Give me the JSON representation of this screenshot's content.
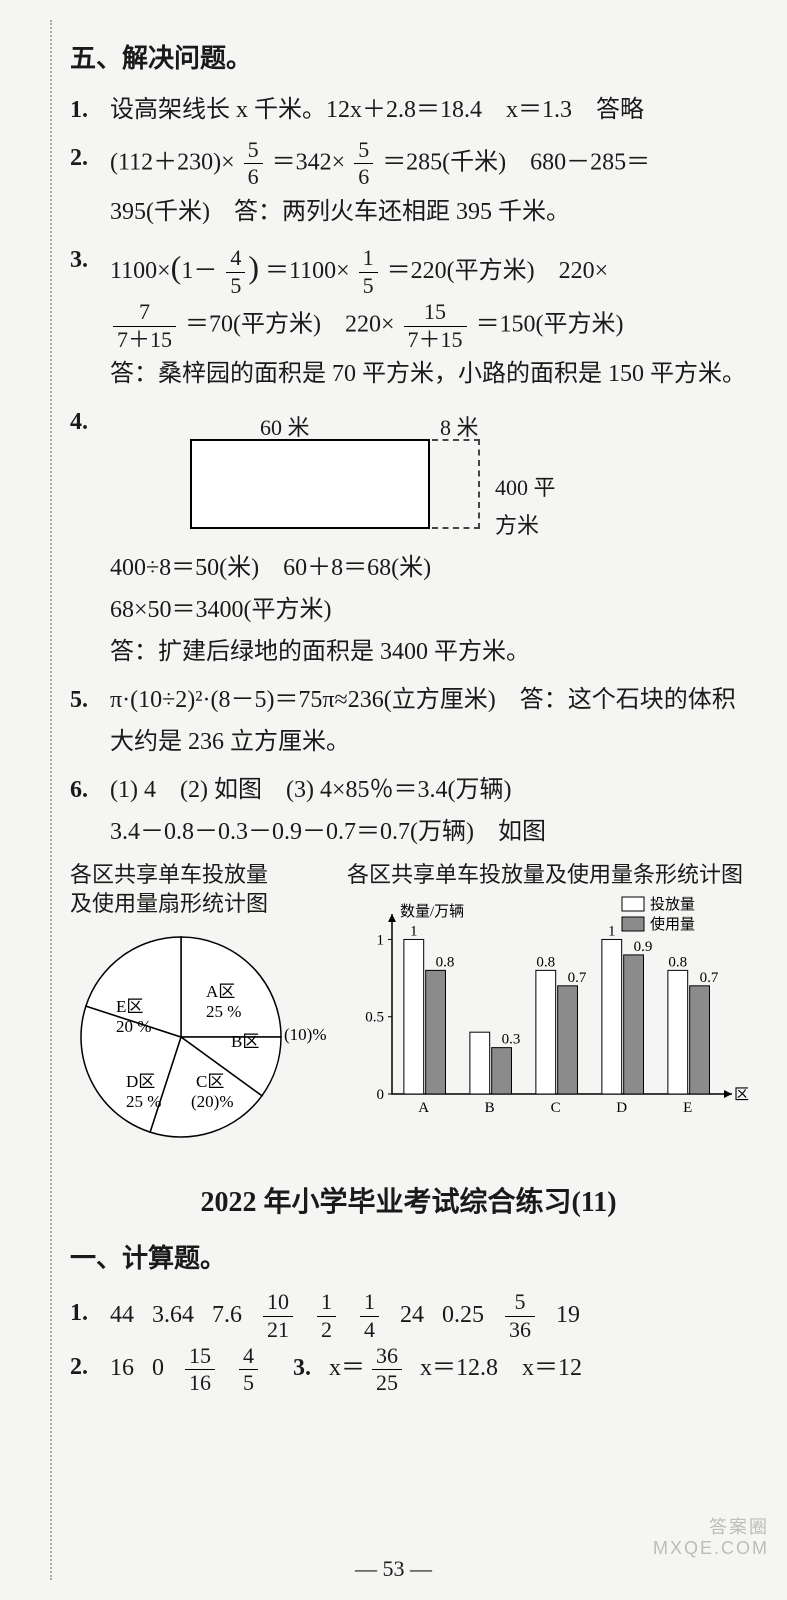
{
  "section5": {
    "title": "五、解决问题。",
    "q1": {
      "num": "1.",
      "text": "设高架线长 x 千米。12x＋2.8＝18.4　x＝1.3　答略"
    },
    "q2": {
      "num": "2.",
      "part_a": "(112＋230)×",
      "frac1_n": "5",
      "frac1_d": "6",
      "part_b": "＝342×",
      "frac2_n": "5",
      "frac2_d": "6",
      "part_c": "＝285(千米)　680－285＝",
      "line2": "395(千米)　答：两列火车还相距 395 千米。"
    },
    "q3": {
      "num": "3.",
      "a1": "1100×",
      "lp": "(",
      "one": "1－",
      "f1_n": "4",
      "f1_d": "5",
      "rp": ")",
      "a2": "＝1100×",
      "f2_n": "1",
      "f2_d": "5",
      "a3": "＝220(平方米)　220×",
      "l2a": "",
      "f3_n": "7",
      "f3_d": "7＋15",
      "l2b": "＝70(平方米)　220×",
      "f4_n": "15",
      "f4_d": "7＋15",
      "l2c": "＝150(平方米)",
      "ans": "答：桑梓园的面积是 70 平方米，小路的面积是 150 平方米。"
    },
    "q4": {
      "num": "4.",
      "lbl60": "60 米",
      "lbl8": "8 米",
      "lbl400": "400 平方米",
      "line1": "400÷8＝50(米)　60＋8＝68(米)",
      "line2": "68×50＝3400(平方米)",
      "ans": "答：扩建后绿地的面积是 3400 平方米。"
    },
    "q5": {
      "num": "5.",
      "text": "π·(10÷2)²·(8－5)＝75π≈236(立方厘米)　答：这个石块的体积大约是 236 立方厘米。"
    },
    "q6": {
      "num": "6.",
      "line1": "(1) 4　(2) 如图　(3) 4×85％＝3.4(万辆)",
      "line2": "3.4－0.8－0.3－0.9－0.7＝0.7(万辆)　如图"
    }
  },
  "pie": {
    "title1": "各区共享单车投放量",
    "title2": "及使用量扇形统计图",
    "slices": [
      {
        "label": "A区",
        "sub": "25 %",
        "pct": 25
      },
      {
        "label": "B区",
        "sub": "",
        "pct": 10
      },
      {
        "label": "C区",
        "sub": "(20)%",
        "pct": 20
      },
      {
        "label": "D区",
        "sub": "25 %",
        "pct": 25
      },
      {
        "label": "E区",
        "sub": "20 %",
        "pct": 20
      }
    ],
    "side_label": "(10)%",
    "bg": "#ffffff",
    "line": "#000000"
  },
  "bar": {
    "title": "各区共享单车投放量及使用量条形统计图",
    "ylabel": "数量/万辆",
    "xlabel": "区",
    "legend": [
      {
        "name": "投放量",
        "color": "#ffffff",
        "stroke": "#000"
      },
      {
        "name": "使用量",
        "color": "#8b8b8b",
        "stroke": "#000"
      }
    ],
    "categories": [
      "A",
      "B",
      "C",
      "D",
      "E"
    ],
    "placed": [
      1,
      0.4,
      0.8,
      1,
      0.8
    ],
    "used": [
      0.8,
      0.3,
      0.7,
      0.9,
      0.7
    ],
    "value_labels_placed": [
      "1",
      "",
      "0.8",
      "1",
      "0.8"
    ],
    "value_labels_used": [
      "0.8",
      "0.3",
      "0.7",
      "0.9",
      "0.7"
    ],
    "yticks": [
      0,
      0.5,
      1
    ],
    "ylim": [
      0,
      1.1
    ],
    "bg": "#ffffff"
  },
  "next_title": "2022 年小学毕业考试综合练习(11)",
  "calc": {
    "section": "一、计算题。",
    "r1": {
      "num": "1.",
      "vals": [
        "44",
        "3.64",
        "7.6",
        {
          "n": "10",
          "d": "21"
        },
        {
          "n": "1",
          "d": "2"
        },
        {
          "n": "1",
          "d": "4"
        },
        "24",
        "0.25",
        {
          "n": "5",
          "d": "36"
        },
        "19"
      ]
    },
    "r2": {
      "num": "2.",
      "vals": [
        "16",
        "0",
        {
          "n": "15",
          "d": "16"
        },
        {
          "n": "4",
          "d": "5"
        }
      ],
      "num3": "3.",
      "vals3": [
        "x＝",
        {
          "n": "36",
          "d": "25"
        },
        " x＝12.8　x＝12"
      ]
    }
  },
  "footer": "— 53 —",
  "watermark1": "答案圈",
  "watermark2": "MXQE.COM",
  "colors": {
    "page_bg": "#f5f5f3",
    "text": "#1a1a1a",
    "grid": "#888888"
  }
}
